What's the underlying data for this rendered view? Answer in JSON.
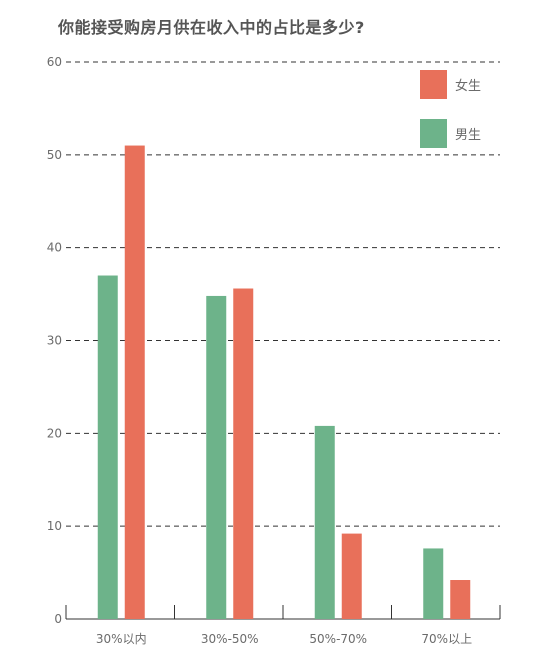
{
  "chart_data": {
    "type": "bar",
    "title": "你能接受购房月供在收入中的占比是多少?",
    "categories": [
      "30%以内",
      "30%-50%",
      "50%-70%",
      "70%以上"
    ],
    "series": [
      {
        "name": "男生",
        "color": "#6db38a",
        "values": [
          37,
          34.8,
          20.8,
          7.6
        ]
      },
      {
        "name": "女生",
        "color": "#e8705a",
        "values": [
          51,
          35.6,
          9.2,
          4.2
        ]
      }
    ],
    "ylim": [
      0,
      60
    ],
    "yticks": [
      0,
      10,
      20,
      30,
      40,
      50,
      60
    ],
    "xlabel": "",
    "ylabel": "",
    "grid": true,
    "legend_position": "top-right",
    "legend_order": [
      "女生",
      "男生"
    ]
  }
}
